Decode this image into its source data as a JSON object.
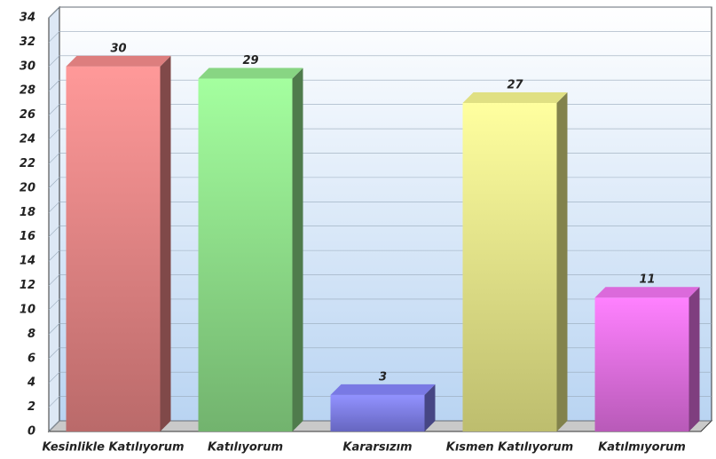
{
  "chart_data": {
    "type": "bar3d",
    "categories": [
      "Kesinlikle Katılıyorum",
      "Katılıyorum",
      "Kararsızım",
      "Kısmen Katılıyorum",
      "Katılmıyorum"
    ],
    "values": [
      30,
      29,
      3,
      27,
      11
    ],
    "colors": [
      "#e98585",
      "#8fe08a",
      "#7f7ff0",
      "#ecec8a",
      "#e670e6"
    ],
    "ylim": [
      0,
      34
    ],
    "yticks": [
      0,
      2,
      4,
      6,
      8,
      10,
      12,
      14,
      16,
      18,
      20,
      22,
      24,
      26,
      28,
      30,
      32,
      34
    ],
    "grid": true
  }
}
